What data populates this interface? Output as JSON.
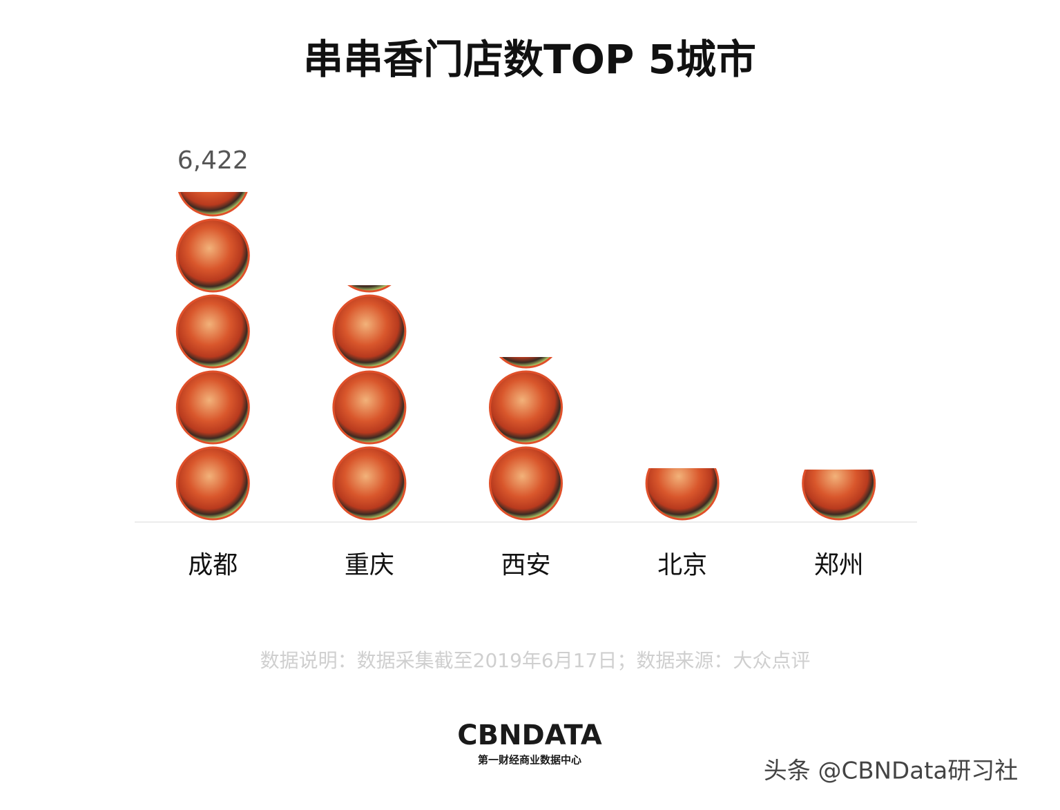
{
  "chart_data": {
    "type": "pictorial-bar",
    "title": "串串香门店数TOP 5城市",
    "categories": [
      "成都",
      "重庆",
      "西安",
      "北京",
      "郑州"
    ],
    "values": [
      6422,
      4605,
      3204,
      1037,
      1010
    ],
    "value_labels": [
      "6,422",
      null,
      null,
      null,
      null
    ],
    "ylim": [
      0,
      6422
    ],
    "color": "#e0502a",
    "footnote": "数据说明：数据采集截至2019年6月17日；数据来源：大众点评",
    "logo": "CBNDATA",
    "logo_subtitle": "第一财经商业数据中心",
    "watermark": "头条 @CBNData研习社"
  }
}
